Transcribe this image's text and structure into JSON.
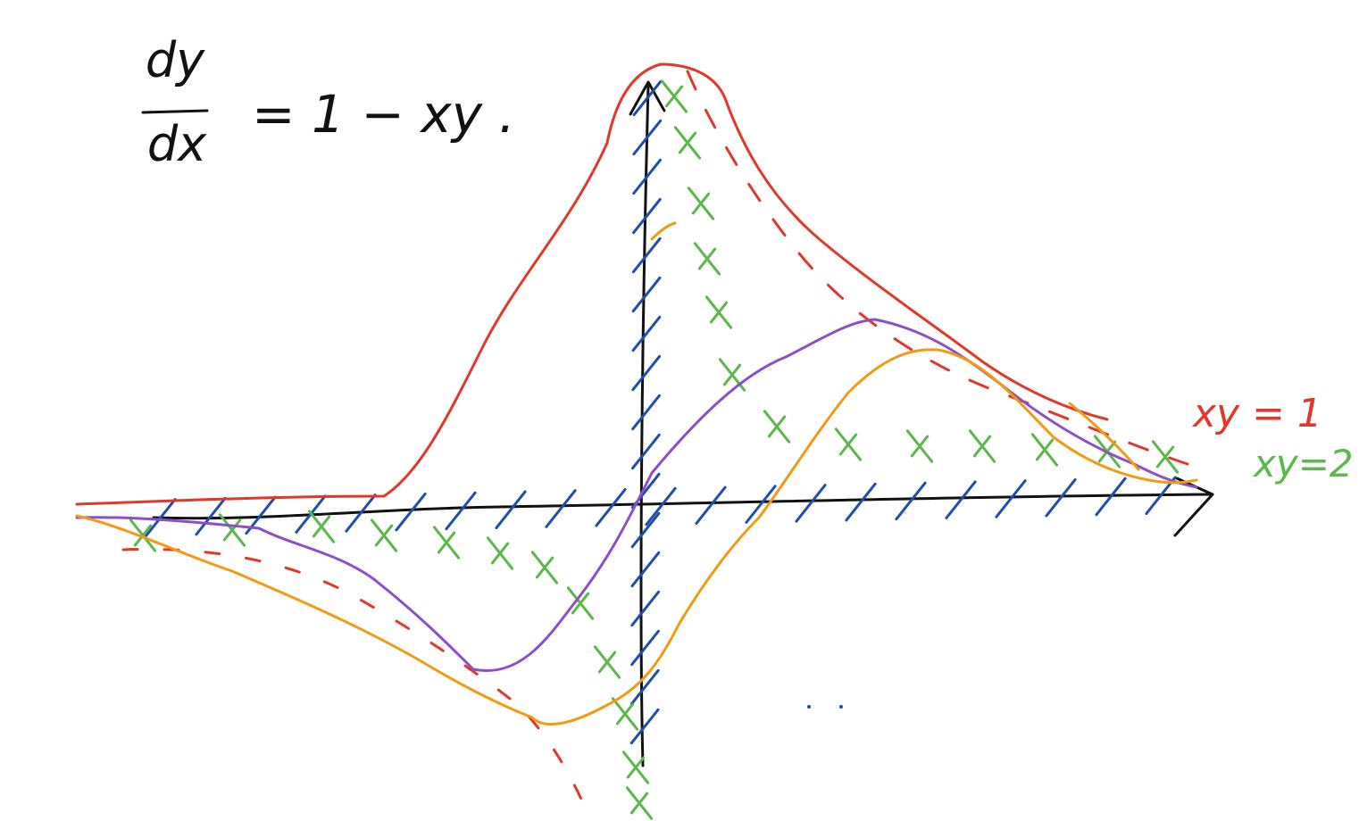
{
  "equation": {
    "numerator": "dy",
    "denominator": "dx",
    "rhs": "= 1 − xy ."
  },
  "labels": {
    "xy1": "xy = 1",
    "xy2": "xy=2"
  },
  "colors": {
    "axis": "#111111",
    "slope_marks": "#1f4fa8",
    "isocline_xy1": "#e0382b",
    "isocline_xy2": "#5bb84a",
    "solution_purple": "#8a4fc9",
    "solution_orange": "#f39a12",
    "solution_red": "#e0382b"
  }
}
